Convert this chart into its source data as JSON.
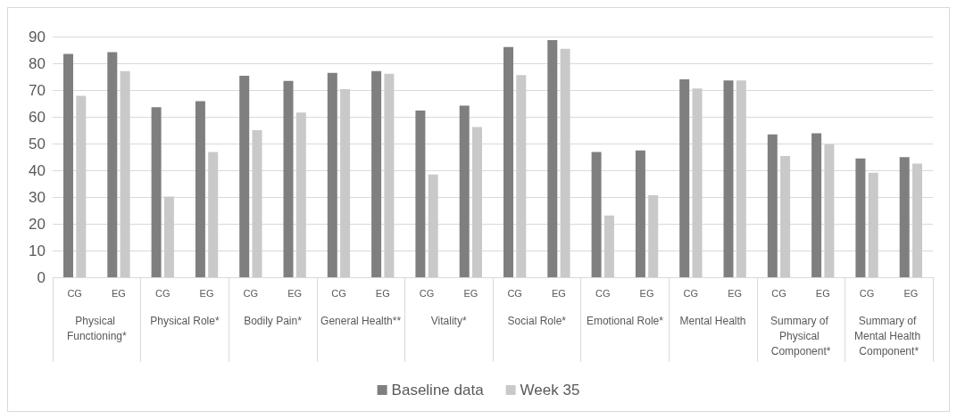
{
  "chart_data": {
    "type": "bar",
    "categories": [
      "CG",
      "EG",
      "CG",
      "EG",
      "CG",
      "EG",
      "CG",
      "EG",
      "CG",
      "EG",
      "CG",
      "EG",
      "CG",
      "EG",
      "CG",
      "EG",
      "CG",
      "EG",
      "CG",
      "EG"
    ],
    "annotations": [
      "Physical Functioning*",
      "Physical Role*",
      "Bodily Pain*",
      "General Health**",
      "Vitality*",
      "Social Role*",
      "Emotional Role*",
      "Mental Health",
      "Summary of Physical Component*",
      "Summary of Mental Health Component*"
    ],
    "series": [
      {
        "name": "Baseline data",
        "color": "#7f7f7f",
        "values": [
          83.5,
          84.2,
          63.6,
          65.8,
          75.3,
          73.4,
          76.4,
          77.1,
          62.3,
          64.2,
          86.1,
          88.7,
          46.8,
          47.4,
          74.0,
          73.6,
          53.4,
          53.8,
          44.4,
          44.9
        ]
      },
      {
        "name": "Week 35",
        "color": "#c9c9c9",
        "values": [
          67.8,
          77.1,
          30.2,
          46.8,
          55.0,
          61.6,
          70.3,
          76.1,
          38.4,
          56.2,
          75.6,
          85.4,
          23.1,
          30.7,
          70.6,
          73.6,
          45.3,
          49.7,
          39.1,
          42.5
        ]
      }
    ],
    "ylim": [
      0,
      90
    ],
    "yticks": [
      0,
      10,
      20,
      30,
      40,
      50,
      60,
      70,
      80,
      90
    ],
    "grid": "y",
    "legend": "bottom"
  }
}
